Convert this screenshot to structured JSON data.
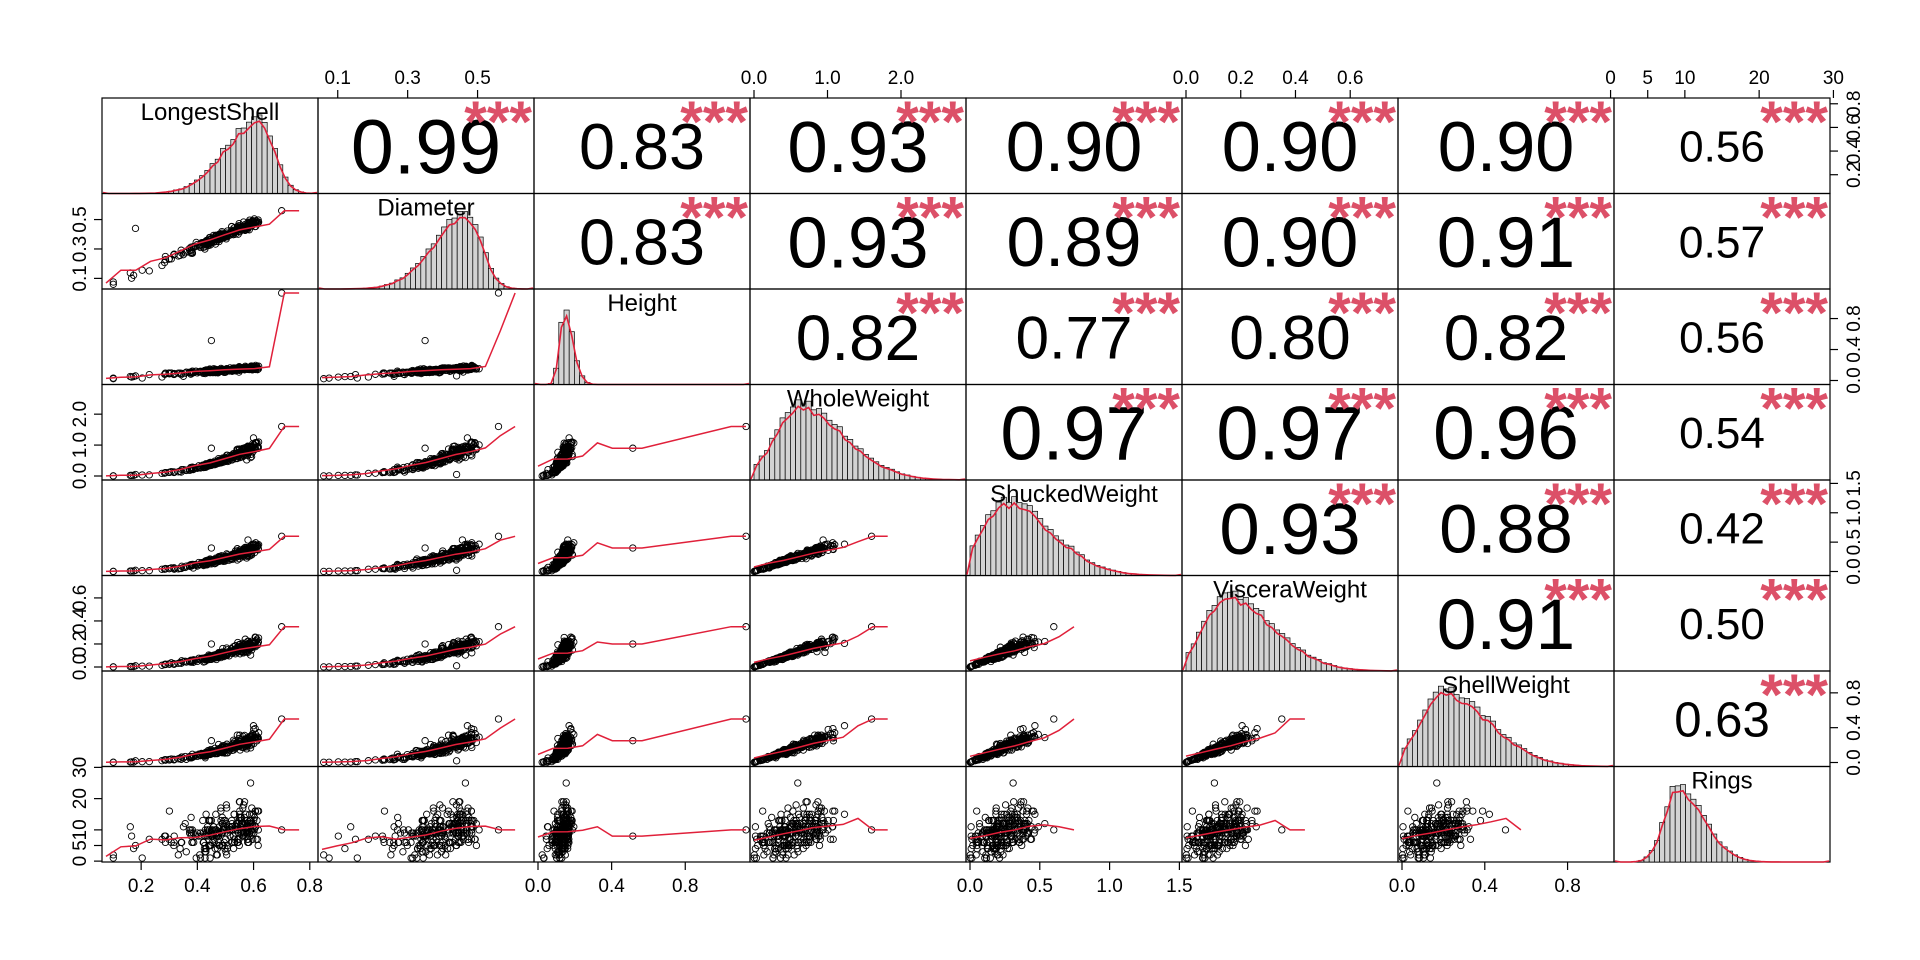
{
  "chart_data": {
    "type": "scatter",
    "subtype": "correlation-matrix",
    "grid": false,
    "colors": {
      "smooth_line": "#e0203a",
      "stars": "#dc5068",
      "hist_fill": "#d3d3d3",
      "points": "#000000"
    },
    "variables": [
      {
        "name": "LongestShell",
        "range": [
          0.075,
          0.815
        ],
        "hist_mode": 0.62
      },
      {
        "name": "Diameter",
        "range": [
          0.055,
          0.65
        ],
        "hist_mode": 0.47
      },
      {
        "name": "Height",
        "range": [
          0.0,
          1.13
        ],
        "hist_mode": 0.14
      },
      {
        "name": "WholeWeight",
        "range": [
          0.0,
          2.83
        ],
        "hist_mode": 0.6
      },
      {
        "name": "ShuckedWeight",
        "range": [
          0.0,
          1.49
        ],
        "hist_mode": 0.25
      },
      {
        "name": "VisceraWeight",
        "range": [
          0.0,
          0.76
        ],
        "hist_mode": 0.15
      },
      {
        "name": "ShellWeight",
        "range": [
          0.0,
          1.005
        ],
        "hist_mode": 0.2
      },
      {
        "name": "Rings",
        "range": [
          1,
          29
        ],
        "hist_mode": 9
      }
    ],
    "correlations": [
      [
        "",
        "0.99",
        "0.83",
        "0.93",
        "0.90",
        "0.90",
        "0.90",
        "0.56"
      ],
      [
        "",
        "",
        "0.83",
        "0.93",
        "0.89",
        "0.90",
        "0.91",
        "0.57"
      ],
      [
        "",
        "",
        "",
        "0.82",
        "0.77",
        "0.80",
        "0.82",
        "0.56"
      ],
      [
        "",
        "",
        "",
        "",
        "0.97",
        "0.97",
        "0.96",
        "0.54"
      ],
      [
        "",
        "",
        "",
        "",
        "",
        "0.93",
        "0.88",
        "0.42"
      ],
      [
        "",
        "",
        "",
        "",
        "",
        "",
        "0.91",
        "0.50"
      ],
      [
        "",
        "",
        "",
        "",
        "",
        "",
        "",
        "0.63"
      ]
    ],
    "significance": "***",
    "axes": {
      "top": [
        {
          "col": 1,
          "ticks": [
            "0.1",
            "0.3",
            "0.5"
          ],
          "values": [
            0.1,
            0.3,
            0.5
          ]
        },
        {
          "col": 3,
          "ticks": [
            "0.0",
            "1.0",
            "2.0"
          ],
          "values": [
            0.0,
            1.0,
            2.0
          ]
        },
        {
          "col": 5,
          "ticks": [
            "0.0",
            "0.2",
            "0.4",
            "0.6"
          ],
          "values": [
            0.0,
            0.2,
            0.4,
            0.6
          ]
        },
        {
          "col": 7,
          "ticks": [
            "0",
            "5",
            "10",
            "20",
            "30"
          ],
          "values": [
            0,
            5,
            10,
            20,
            30
          ]
        }
      ],
      "bottom": [
        {
          "col": 0,
          "ticks": [
            "0.2",
            "0.4",
            "0.6",
            "0.8"
          ],
          "values": [
            0.2,
            0.4,
            0.6,
            0.8
          ]
        },
        {
          "col": 2,
          "ticks": [
            "0.0",
            "0.4",
            "0.8"
          ],
          "values": [
            0.0,
            0.4,
            0.8
          ]
        },
        {
          "col": 4,
          "ticks": [
            "0.0",
            "0.5",
            "1.0",
            "1.5"
          ],
          "values": [
            0.0,
            0.5,
            1.0,
            1.5
          ]
        },
        {
          "col": 6,
          "ticks": [
            "0.0",
            "0.4",
            "0.8"
          ],
          "values": [
            0.0,
            0.4,
            0.8
          ]
        }
      ],
      "left": [
        {
          "row": 1,
          "ticks": [
            "0.1",
            "0.3",
            "0.5"
          ],
          "values": [
            0.1,
            0.3,
            0.5
          ]
        },
        {
          "row": 3,
          "ticks": [
            "0.0",
            "1.0",
            "2.0"
          ],
          "values": [
            0.0,
            1.0,
            2.0
          ]
        },
        {
          "row": 5,
          "ticks": [
            "0.0",
            "0.2",
            "0.4",
            "0.6"
          ],
          "values": [
            0.0,
            0.2,
            0.4,
            0.6
          ]
        },
        {
          "row": 7,
          "ticks": [
            "0",
            "5",
            "10",
            "20",
            "30"
          ],
          "values": [
            0,
            5,
            10,
            20,
            30
          ]
        }
      ],
      "right": [
        {
          "row": 0,
          "ticks": [
            "0.2",
            "0.4",
            "0.6",
            "0.8"
          ],
          "values": [
            0.2,
            0.4,
            0.6,
            0.8
          ]
        },
        {
          "row": 2,
          "ticks": [
            "0.0",
            "0.4",
            "0.8"
          ],
          "values": [
            0.0,
            0.4,
            0.8
          ]
        },
        {
          "row": 4,
          "ticks": [
            "0.0",
            "0.5",
            "1.0",
            "1.5"
          ],
          "values": [
            0.0,
            0.5,
            1.0,
            1.5
          ]
        },
        {
          "row": 6,
          "ticks": [
            "0.0",
            "0.4",
            "0.8"
          ],
          "values": [
            0.0,
            0.4,
            0.8
          ]
        }
      ]
    }
  }
}
